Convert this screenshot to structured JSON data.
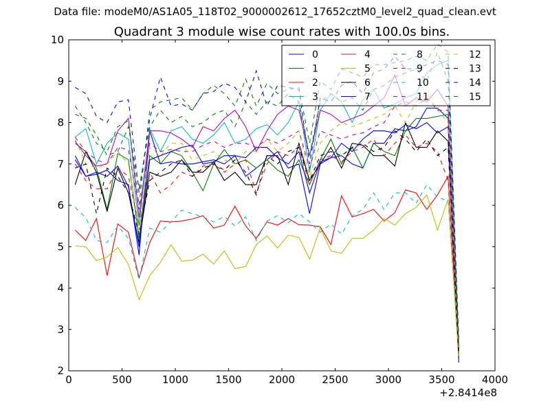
{
  "chart_data": {
    "type": "line",
    "suptitle": "Data file: modeM0/AS1A05_118T02_9000002612_17652cztM0_level2_quad_clean.evt",
    "title": "Quadrant 3 module wise count rates with 100.0s bins.",
    "xlabel": "",
    "ylabel": "",
    "xlim": [
      0,
      4000
    ],
    "ylim": [
      2,
      10
    ],
    "x_offset_label": "+2.8414e8",
    "xticks": [
      "0",
      "500",
      "1000",
      "1500",
      "2000",
      "2500",
      "3000",
      "3500",
      "4000"
    ],
    "yticks": [
      "2",
      "3",
      "4",
      "5",
      "6",
      "7",
      "8",
      "9",
      "10"
    ],
    "grid": false,
    "legend_position": "top-right",
    "legend_columns": 4,
    "x": [
      60,
      160,
      260,
      360,
      460,
      560,
      660,
      760,
      860,
      960,
      1060,
      1160,
      1260,
      1360,
      1460,
      1560,
      1660,
      1760,
      1860,
      1960,
      2060,
      2160,
      2260,
      2360,
      2460,
      2560,
      2660,
      2760,
      2860,
      2960,
      3060,
      3160,
      3260,
      3360,
      3460,
      3560,
      3660
    ],
    "series": [
      {
        "name": "0",
        "color": "#0000ff",
        "dashed": false,
        "values": [
          7.1,
          6.7,
          6.75,
          6.85,
          6.6,
          6.5,
          4.8,
          7.8,
          7.0,
          7.05,
          7.0,
          7.0,
          7.05,
          7.1,
          7.0,
          7.2,
          6.7,
          6.9,
          7.1,
          7.3,
          6.9,
          7.0,
          5.8,
          7.0,
          7.15,
          7.2,
          7.0,
          6.9,
          7.5,
          7.5,
          7.85,
          7.8,
          7.9,
          8.35,
          8.35,
          8.1,
          2.2
        ]
      },
      {
        "name": "1",
        "color": "#008000",
        "dashed": false,
        "values": [
          7.5,
          7.3,
          6.9,
          5.9,
          7.25,
          7.1,
          5.2,
          7.2,
          7.0,
          7.3,
          7.2,
          6.8,
          6.35,
          7.0,
          7.35,
          7.0,
          7.1,
          6.9,
          7.1,
          6.85,
          6.7,
          7.1,
          6.5,
          7.1,
          7.6,
          7.0,
          7.4,
          6.9,
          7.5,
          7.3,
          7.2,
          7.8,
          8.1,
          8.1,
          8.15,
          8.2,
          2.3
        ]
      },
      {
        "name": "2",
        "color": "#ff0000",
        "dashed": false,
        "values": [
          5.4,
          5.15,
          5.68,
          4.3,
          5.55,
          5.35,
          4.25,
          5.1,
          5.62,
          5.6,
          5.62,
          5.67,
          5.75,
          5.45,
          5.52,
          5.98,
          5.5,
          5.2,
          5.6,
          5.52,
          5.68,
          5.53,
          5.52,
          5.48,
          5.05,
          6.23,
          5.72,
          5.8,
          5.9,
          5.62,
          5.82,
          6.37,
          6.3,
          5.9,
          6.25,
          6.7,
          2.5
        ]
      },
      {
        "name": "3",
        "color": "#00bfbf",
        "dashed": false,
        "values": [
          7.65,
          7.85,
          7.0,
          7.5,
          7.75,
          7.6,
          5.5,
          7.85,
          7.3,
          7.8,
          7.9,
          7.6,
          7.5,
          7.7,
          8.0,
          7.5,
          7.6,
          7.85,
          7.95,
          7.7,
          8.0,
          8.5,
          6.8,
          8.3,
          8.7,
          8.5,
          8.0,
          8.55,
          8.8,
          8.35,
          8.45,
          8.6,
          8.7,
          9.2,
          9.4,
          9.5,
          2.5
        ]
      },
      {
        "name": "4",
        "color": "#bf00bf",
        "dashed": false,
        "values": [
          7.55,
          7.2,
          6.95,
          7.0,
          7.8,
          8.1,
          5.7,
          7.8,
          7.8,
          7.75,
          7.6,
          7.4,
          7.9,
          7.8,
          8.1,
          8.3,
          7.9,
          7.3,
          7.8,
          8.2,
          8.4,
          8.3,
          7.2,
          8.3,
          8.2,
          8.0,
          8.1,
          8.2,
          8.4,
          8.6,
          9.15,
          8.4,
          8.6,
          8.5,
          8.8,
          8.4,
          2.6
        ]
      },
      {
        "name": "5",
        "color": "#bfbf00",
        "dashed": false,
        "values": [
          5.02,
          5.0,
          4.66,
          4.75,
          4.98,
          4.57,
          3.72,
          4.3,
          4.62,
          5.05,
          4.65,
          4.67,
          4.82,
          4.58,
          4.9,
          4.47,
          4.52,
          5.05,
          5.26,
          4.97,
          5.28,
          5.22,
          4.7,
          5.45,
          4.9,
          4.84,
          5.2,
          5.2,
          5.4,
          5.68,
          5.52,
          5.8,
          5.95,
          6.25,
          5.4,
          6.15,
          2.3
        ]
      },
      {
        "name": "6",
        "color": "#000000",
        "dashed": false,
        "values": [
          6.5,
          7.3,
          6.8,
          5.85,
          6.9,
          6.3,
          5.1,
          6.8,
          6.7,
          6.8,
          7.1,
          6.8,
          6.8,
          7.05,
          6.6,
          6.8,
          6.5,
          6.5,
          7.2,
          7.2,
          6.5,
          7.5,
          6.6,
          7.0,
          7.4,
          6.9,
          7.5,
          7.45,
          7.2,
          7.2,
          6.95,
          8.0,
          7.4,
          7.4,
          7.8,
          7.55,
          2.4
        ]
      },
      {
        "name": "7",
        "color": "#0000ff",
        "dashed": false,
        "values": [
          7.2,
          6.7,
          6.8,
          6.7,
          6.95,
          6.45,
          5.0,
          7.1,
          7.2,
          7.3,
          7.4,
          7.45,
          7.0,
          7.05,
          7.2,
          7.2,
          7.15,
          7.4,
          7.4,
          7.15,
          7.0,
          7.3,
          6.3,
          7.05,
          7.15,
          7.5,
          7.3,
          7.6,
          7.8,
          7.8,
          7.75,
          7.95,
          7.85,
          8.0,
          7.75,
          7.9,
          2.3
        ]
      },
      {
        "name": "8",
        "color": "#008000",
        "dashed": true,
        "values": [
          8.4,
          8.0,
          7.5,
          7.3,
          7.9,
          8.05,
          6.0,
          8.3,
          8.5,
          8.55,
          8.6,
          8.3,
          8.7,
          8.9,
          8.7,
          8.4,
          9.05,
          8.4,
          8.95,
          8.7,
          8.8,
          8.85,
          7.5,
          9.0,
          8.8,
          9.3,
          9.2,
          9.1,
          9.4,
          9.4,
          9.45,
          9.5,
          9.6,
          9.5,
          9.9,
          9.7,
          2.8
        ]
      },
      {
        "name": "9",
        "color": "#ff0000",
        "dashed": true,
        "values": [
          7.0,
          6.6,
          6.4,
          6.4,
          6.9,
          6.7,
          5.5,
          6.8,
          6.3,
          6.5,
          6.8,
          6.7,
          6.95,
          7.0,
          6.8,
          7.0,
          7.1,
          6.3,
          7.0,
          7.3,
          7.2,
          7.4,
          6.5,
          7.1,
          7.2,
          7.05,
          7.3,
          7.4,
          7.6,
          7.2,
          7.5,
          7.7,
          7.4,
          7.5,
          7.3,
          6.6,
          2.4
        ]
      },
      {
        "name": "10",
        "color": "#00bfbf",
        "dashed": true,
        "values": [
          5.95,
          5.7,
          5.15,
          5.1,
          5.5,
          5.2,
          4.2,
          5.45,
          5.35,
          5.6,
          5.88,
          5.8,
          5.72,
          5.6,
          5.73,
          5.5,
          5.72,
          5.15,
          5.62,
          5.75,
          5.58,
          5.8,
          5.6,
          5.35,
          5.55,
          5.3,
          5.75,
          5.9,
          6.3,
          5.9,
          6.3,
          6.3,
          6.05,
          6.5,
          6.2,
          6.1,
          2.6
        ]
      },
      {
        "name": "11",
        "color": "#bf00bf",
        "dashed": true,
        "values": [
          7.65,
          7.3,
          7.1,
          7.0,
          7.4,
          7.35,
          5.9,
          7.5,
          7.3,
          7.35,
          7.3,
          7.3,
          7.45,
          7.55,
          7.4,
          7.5,
          7.5,
          7.4,
          7.6,
          7.5,
          7.65,
          7.8,
          6.9,
          7.8,
          7.7,
          7.6,
          7.7,
          7.75,
          7.9,
          8.0,
          8.4,
          8.5,
          8.4,
          8.6,
          8.3,
          8.3,
          2.5
        ]
      },
      {
        "name": "12",
        "color": "#bfbf00",
        "dashed": true,
        "values": [
          7.6,
          7.0,
          6.9,
          7.0,
          7.3,
          7.0,
          5.4,
          7.4,
          7.2,
          7.5,
          7.5,
          7.1,
          7.2,
          7.3,
          7.1,
          7.0,
          7.3,
          7.3,
          7.6,
          7.3,
          7.5,
          7.8,
          6.7,
          7.5,
          7.8,
          8.0,
          7.9,
          8.0,
          8.1,
          8.2,
          8.4,
          8.0,
          8.5,
          8.7,
          8.3,
          8.0,
          2.3
        ]
      },
      {
        "name": "13",
        "color": "#000000",
        "dashed": true,
        "values": [
          6.9,
          7.0,
          5.8,
          6.9,
          6.7,
          6.3,
          5.3,
          6.6,
          6.8,
          7.0,
          7.1,
          6.7,
          6.9,
          7.0,
          6.85,
          7.1,
          6.8,
          6.25,
          7.2,
          7.0,
          7.3,
          7.4,
          6.6,
          7.2,
          7.3,
          7.2,
          7.4,
          7.5,
          7.3,
          7.4,
          7.8,
          7.6,
          7.3,
          7.6,
          7.2,
          7.4,
          2.4
        ]
      },
      {
        "name": "14",
        "color": "#0000ff",
        "dashed": true,
        "values": [
          8.85,
          8.7,
          8.15,
          8.0,
          8.5,
          8.55,
          6.3,
          8.1,
          9.1,
          8.4,
          8.45,
          8.3,
          8.7,
          8.75,
          8.95,
          8.85,
          8.5,
          9.25,
          8.4,
          8.9,
          8.85,
          8.8,
          7.0,
          8.6,
          8.5,
          8.9,
          9.0,
          8.7,
          9.2,
          9.3,
          9.6,
          9.3,
          9.3,
          9.4,
          9.5,
          9.4,
          2.7
        ]
      },
      {
        "name": "15",
        "color": "#008000",
        "dashed": true,
        "values": [
          8.2,
          8.1,
          7.7,
          7.2,
          7.3,
          7.9,
          6.4,
          7.9,
          8.3,
          8.0,
          8.15,
          7.9,
          8.0,
          8.2,
          8.3,
          7.9,
          8.5,
          8.2,
          8.5,
          8.4,
          8.7,
          8.5,
          7.2,
          8.5,
          8.7,
          8.5,
          8.6,
          8.3,
          8.8,
          8.9,
          9.1,
          9.2,
          9.3,
          9.0,
          9.7,
          9.0,
          2.6
        ]
      }
    ]
  }
}
